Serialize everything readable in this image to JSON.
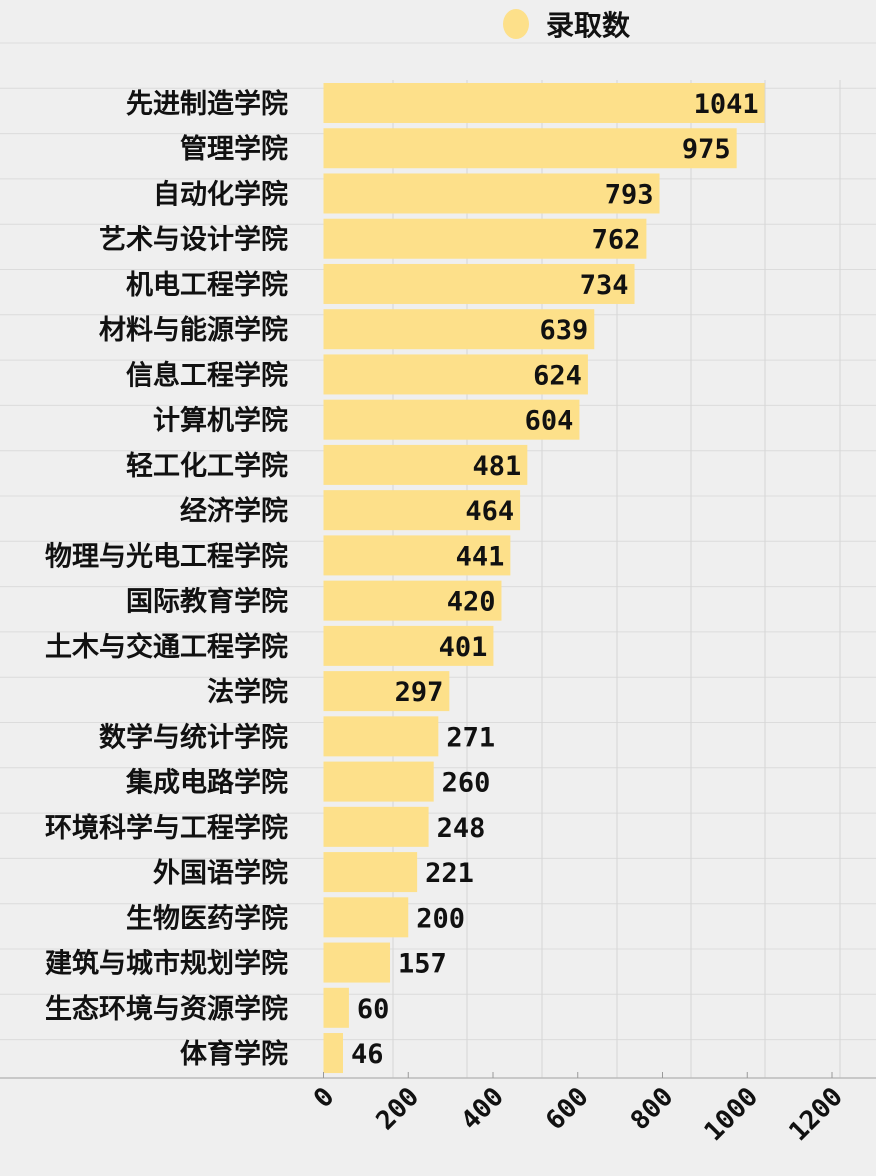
{
  "chart_data": {
    "type": "bar",
    "orientation": "horizontal",
    "legend": {
      "label": "录取数",
      "placement": "top"
    },
    "categories": [
      "先进制造学院",
      "管理学院",
      "自动化学院",
      "艺术与设计学院",
      "机电工程学院",
      "材料与能源学院",
      "信息工程学院",
      "计算机学院",
      "轻工化工学院",
      "经济学院",
      "物理与光电工程学院",
      "国际教育学院",
      "土木与交通工程学院",
      "法学院",
      "数学与统计学院",
      "集成电路学院",
      "环境科学与工程学院",
      "外国语学院",
      "生物医药学院",
      "建筑与城市规划学院",
      "生态环境与资源学院",
      "体育学院"
    ],
    "series": [
      {
        "name": "录取数",
        "values": [
          1041,
          975,
          793,
          762,
          734,
          639,
          624,
          604,
          481,
          464,
          441,
          420,
          401,
          297,
          271,
          260,
          248,
          221,
          200,
          157,
          60,
          46
        ]
      }
    ],
    "xlim": [
      0,
      1200
    ],
    "xticks": [
      0,
      200,
      400,
      600,
      800,
      1000,
      1200
    ],
    "grid": false,
    "colors": {
      "bar": "#fde08a",
      "background": "#efefef",
      "text": "#111111"
    }
  }
}
